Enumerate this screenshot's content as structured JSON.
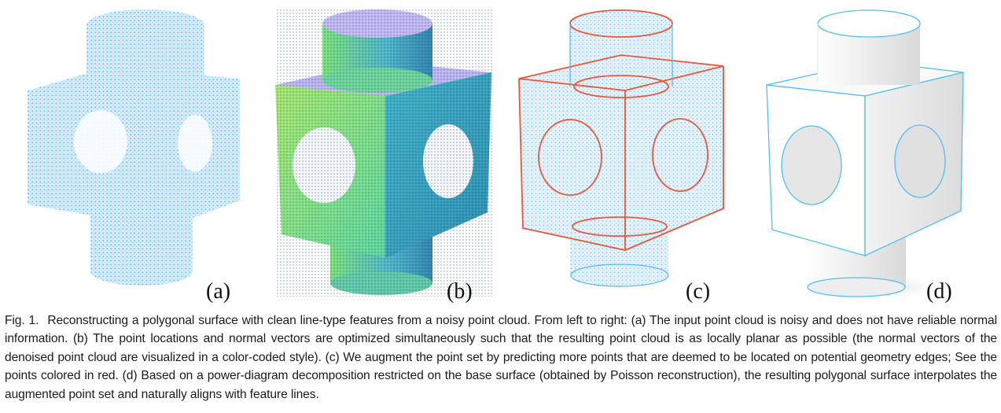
{
  "panels": [
    {
      "label": "(a)",
      "style": "noisy-point-cloud",
      "point_color": "#6fc3f0"
    },
    {
      "label": "(b)",
      "style": "color-coded-normals",
      "colors": [
        "#b8b0f0",
        "#66e0a0",
        "#9ae070",
        "#3ea6c8"
      ]
    },
    {
      "label": "(c)",
      "style": "augmented-points",
      "point_color": "#7cc8f2",
      "edge_color": "#e8583a"
    },
    {
      "label": "(d)",
      "style": "polygonal-surface",
      "surface_color": "#f4f4f4",
      "line_color": "#4cc2ee"
    }
  ],
  "caption": {
    "fig_label": "Fig. 1.",
    "text": "Reconstructing a polygonal surface with clean line-type features from a noisy point cloud. From left to right: (a) The input point cloud is noisy and does not have reliable normal information. (b) The point locations and normal vectors are optimized simultaneously such that the resulting point cloud is as locally planar as possible (the normal vectors of the denoised point cloud are visualized in a color-coded style). (c) We augment the point set by predicting more points that are deemed to be located on potential geometry edges; See the points colored in red. (d) Based on a power-diagram decomposition restricted on the base surface (obtained by Poisson reconstruction), the resulting polygonal surface interpolates the augmented point set and naturally aligns with feature lines."
  }
}
